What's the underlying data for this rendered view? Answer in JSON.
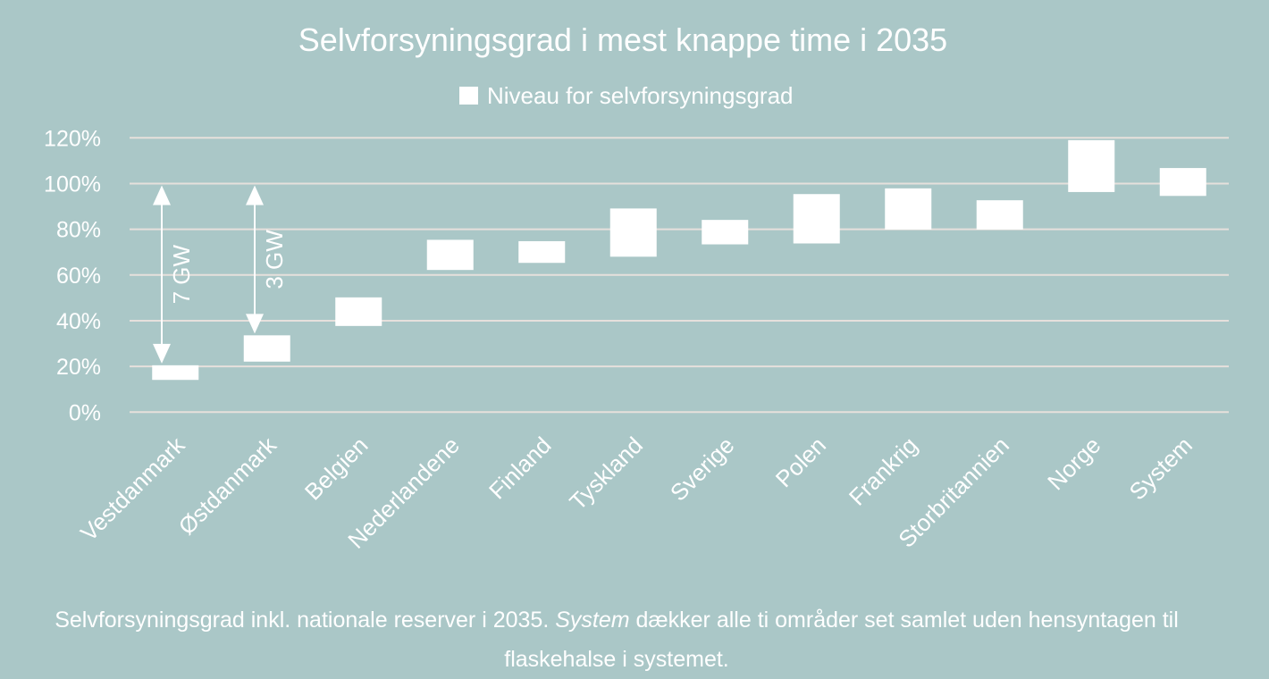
{
  "chart_data": {
    "type": "floating-bar",
    "title": "Selvforsyningsgrad i mest knappe time i 2035",
    "legend": {
      "label": "Niveau for selvforsyningsgrad",
      "placement": "top-center"
    },
    "categories": [
      "Vestdanmark",
      "Østdanmark",
      "Belgien",
      "Nederlandene",
      "Finland",
      "Tyskland",
      "Sverige",
      "Polen",
      "Frankrig",
      "Storbritannien",
      "Norge",
      "System"
    ],
    "series": [
      {
        "name": "Niveau for selvforsyningsgrad",
        "low": [
          14.1,
          22.1,
          37.7,
          62.2,
          65.3,
          68.0,
          73.4,
          73.8,
          79.9,
          79.9,
          96.3,
          94.6
        ],
        "high": [
          20.5,
          33.6,
          50.2,
          75.4,
          74.8,
          89.1,
          84.1,
          95.4,
          97.9,
          92.7,
          119.0,
          106.8
        ]
      }
    ],
    "yticks": [
      "0%",
      "20%",
      "40%",
      "60%",
      "80%",
      "100%",
      "120%"
    ],
    "ylim": [
      0,
      120
    ],
    "grid": true,
    "annotations": [
      {
        "label": "7 GW",
        "category": "Vestdanmark",
        "from": 100,
        "to": 20.5
      },
      {
        "label": "3 GW",
        "category": "Østdanmark",
        "from": 100,
        "to": 33.6
      }
    ],
    "colors": {
      "background": "#aac7c7",
      "bar": "#ffffff",
      "grid": "#e6e0dc",
      "text": "#ffffff"
    }
  },
  "caption": {
    "part1": "Selvforsyningsgrad inkl. nationale reserver i 2035. ",
    "italic": "System",
    "part2": " dækker alle ti områder set samlet uden hensyntagen til flaskehalse i systemet."
  }
}
